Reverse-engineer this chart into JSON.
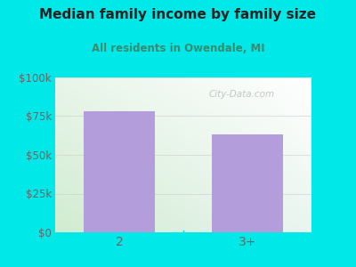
{
  "title": "Median family income by family size",
  "subtitle": "All residents in Owendale, MI",
  "categories": [
    "2",
    "3+"
  ],
  "values": [
    78000,
    63000
  ],
  "bar_color": "#b39ddb",
  "outer_bg": "#00e8e8",
  "title_color": "#222222",
  "subtitle_color": "#3a8a6e",
  "tick_color": "#666666",
  "ylim": [
    0,
    100000
  ],
  "yticks": [
    0,
    25000,
    50000,
    75000,
    100000
  ],
  "ytick_labels": [
    "$0",
    "$25k",
    "$50k",
    "$75k",
    "$100k"
  ],
  "watermark": "City-Data.com",
  "bar_width": 0.55,
  "xlim": [
    -0.5,
    1.5
  ]
}
